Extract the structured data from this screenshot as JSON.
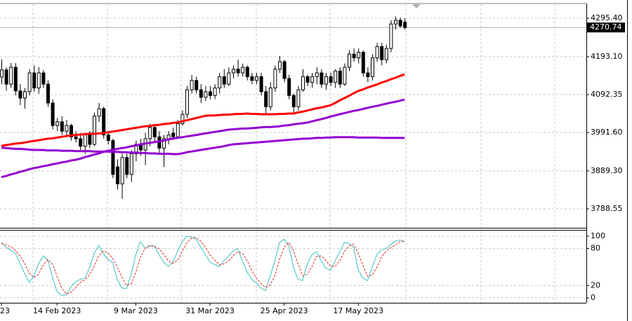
{
  "chart_data": [
    {
      "type": "candlestick",
      "categories": [
        "23",
        null,
        null,
        null,
        null,
        null,
        null,
        null,
        null,
        null,
        null,
        null,
        "14 Feb 2023",
        null,
        null,
        null,
        null,
        null,
        null,
        null,
        null,
        null,
        null,
        null,
        null,
        null,
        null,
        null,
        null,
        "9 Mar 2023",
        null,
        null,
        null,
        null,
        null,
        null,
        null,
        null,
        null,
        null,
        null,
        null,
        null,
        null,
        null,
        "31 Mar 2023",
        null,
        null,
        null,
        null,
        null,
        null,
        null,
        null,
        null,
        null,
        null,
        null,
        null,
        null,
        null,
        "25 Apr 2023",
        null,
        null,
        null,
        null,
        null,
        null,
        null,
        null,
        null,
        null,
        null,
        null,
        null,
        null,
        null,
        "17 May 2023",
        null,
        null,
        null,
        null,
        null,
        null,
        null,
        null,
        null,
        null
      ],
      "open": [
        4139,
        4158,
        4120,
        4165,
        4102,
        4083,
        4100,
        4150,
        4110,
        4150,
        4120,
        4070,
        4010,
        4020,
        3995,
        4010,
        3980,
        3975,
        3955,
        3985,
        3960,
        4035,
        4055,
        3985,
        3970,
        3900,
        3855,
        3925,
        3880,
        3935,
        3960,
        3945,
        3975,
        4005,
        3980,
        3950,
        3975,
        3990,
        3980,
        4015,
        4040,
        4105,
        4130,
        4105,
        4085,
        4100,
        4090,
        4110,
        4140,
        4120,
        4150,
        4160,
        4150,
        4165,
        4140,
        4130,
        4140,
        4100,
        4060,
        4110,
        4160,
        4180,
        4135,
        4090,
        4060,
        4105,
        4140,
        4125,
        4140,
        4150,
        4120,
        4140,
        4125,
        4155,
        4120,
        4165,
        4200,
        4190,
        4205,
        4150,
        4140,
        4190,
        4220,
        4185,
        4215,
        4280,
        4290,
        4285
      ],
      "high": [
        4186,
        4165,
        4176,
        4176,
        4120,
        4110,
        4160,
        4170,
        4165,
        4158,
        4130,
        4080,
        4030,
        4035,
        4025,
        4015,
        3995,
        3990,
        3990,
        3995,
        4045,
        4070,
        4060,
        3995,
        3975,
        3920,
        3935,
        3935,
        3945,
        3970,
        3975,
        3990,
        4015,
        4010,
        3995,
        3985,
        3995,
        4005,
        4025,
        4050,
        4115,
        4145,
        4140,
        4120,
        4115,
        4115,
        4120,
        4150,
        4160,
        4165,
        4170,
        4185,
        4175,
        4170,
        4150,
        4150,
        4150,
        4115,
        4125,
        4170,
        4195,
        4185,
        4145,
        4095,
        4115,
        4160,
        4145,
        4150,
        4165,
        4160,
        4150,
        4150,
        4160,
        4165,
        4175,
        4210,
        4215,
        4215,
        4210,
        4165,
        4200,
        4230,
        4230,
        4225,
        4290,
        4300,
        4297,
        4295
      ],
      "low": [
        4120,
        4102,
        4110,
        4090,
        4064,
        4055,
        4090,
        4100,
        4095,
        4110,
        4060,
        4000,
        3995,
        3985,
        3980,
        3970,
        3965,
        3945,
        3935,
        3950,
        3955,
        4020,
        3975,
        3960,
        3870,
        3840,
        3815,
        3870,
        3860,
        3915,
        3930,
        3905,
        3955,
        3965,
        3935,
        3900,
        3960,
        3975,
        3975,
        4010,
        4030,
        4095,
        4095,
        4070,
        4075,
        4080,
        4080,
        4095,
        4110,
        4115,
        4135,
        4140,
        4140,
        4130,
        4120,
        4120,
        4090,
        4040,
        4050,
        4100,
        4150,
        4125,
        4080,
        4045,
        4050,
        4100,
        4115,
        4110,
        4120,
        4110,
        4105,
        4115,
        4110,
        4110,
        4115,
        4155,
        4180,
        4175,
        4140,
        4125,
        4130,
        4180,
        4170,
        4175,
        4205,
        4265,
        4270,
        4265
      ],
      "close": [
        4158,
        4120,
        4165,
        4102,
        4083,
        4100,
        4150,
        4110,
        4150,
        4120,
        4070,
        4010,
        4020,
        3995,
        4010,
        3980,
        3975,
        3955,
        3985,
        3960,
        4035,
        4055,
        3985,
        3970,
        3880,
        3855,
        3925,
        3880,
        3935,
        3960,
        3945,
        3975,
        4005,
        3980,
        3950,
        3975,
        3985,
        3980,
        4015,
        4040,
        4105,
        4130,
        4105,
        4085,
        4100,
        4090,
        4110,
        4140,
        4120,
        4150,
        4160,
        4150,
        4165,
        4140,
        4130,
        4140,
        4100,
        4060,
        4110,
        4160,
        4180,
        4135,
        4090,
        4060,
        4105,
        4140,
        4125,
        4140,
        4150,
        4120,
        4140,
        4125,
        4155,
        4120,
        4165,
        4200,
        4190,
        4205,
        4150,
        4140,
        4190,
        4220,
        4185,
        4215,
        4280,
        4290,
        4275,
        4270.74
      ],
      "up_color": "#ffffff",
      "down_color": "#000000",
      "edge_color": "#000000",
      "series": [
        {
          "color": "#ff0000",
          "values": [
            3956,
            3958,
            3960,
            3962,
            3963,
            3965,
            3967,
            3969,
            3971,
            3973,
            3975,
            3976,
            3978,
            3980,
            3982,
            3984,
            3985,
            3986,
            3987,
            3988,
            3988,
            3989,
            3990,
            3992,
            3994,
            3996,
            3998,
            4000,
            4002,
            4004,
            4006,
            4008,
            4009,
            4011,
            4012,
            4014,
            4015,
            4017,
            4018,
            4021,
            4024,
            4027,
            4030,
            4033,
            4036,
            4037,
            4037,
            4038,
            4039,
            4039,
            4040,
            4041,
            4041,
            4042,
            4041,
            4041,
            4040,
            4040,
            4040,
            4040,
            4041,
            4041,
            4042,
            4042,
            4045,
            4047,
            4050,
            4053,
            4056,
            4058,
            4061,
            4064,
            4070,
            4077,
            4083,
            4089,
            4096,
            4102,
            4106,
            4111,
            4115,
            4119,
            4124,
            4128,
            4133,
            4137,
            4142,
            4146
          ]
        },
        {
          "color": "#9400d3",
          "values": [
            3873,
            3876,
            3880,
            3883,
            3887,
            3890,
            3894,
            3897,
            3899,
            3902,
            3904,
            3907,
            3909,
            3912,
            3914,
            3917,
            3919,
            3922,
            3926,
            3929,
            3933,
            3936,
            3940,
            3943,
            3945,
            3948,
            3950,
            3952,
            3955,
            3957,
            3960,
            3962,
            3964,
            3966,
            3968,
            3970,
            3973,
            3975,
            3977,
            3979,
            3981,
            3983,
            3985,
            3987,
            3989,
            3991,
            3993,
            3995,
            3997,
            3999,
            4000,
            4001,
            4002,
            4002,
            4003,
            4004,
            4005,
            4006,
            4006,
            4007,
            4008,
            4010,
            4011,
            4013,
            4015,
            4016,
            4018,
            4021,
            4024,
            4027,
            4030,
            4034,
            4037,
            4040,
            4043,
            4046,
            4049,
            4051,
            4054,
            4057,
            4060,
            4062,
            4065,
            4068,
            4071,
            4073,
            4076,
            4079
          ]
        },
        {
          "color": "#9400d3",
          "values": [
            3951,
            3950,
            3949,
            3948,
            3948,
            3947,
            3946,
            3945,
            3945,
            3945,
            3944,
            3944,
            3944,
            3943,
            3943,
            3943,
            3942,
            3942,
            3942,
            3942,
            3941,
            3941,
            3941,
            3941,
            3940,
            3940,
            3939,
            3939,
            3938,
            3938,
            3937,
            3937,
            3936,
            3936,
            3935,
            3935,
            3935,
            3934,
            3934,
            3936,
            3939,
            3941,
            3943,
            3945,
            3947,
            3949,
            3951,
            3953,
            3955,
            3958,
            3960,
            3961,
            3962,
            3963,
            3964,
            3965,
            3966,
            3967,
            3968,
            3969,
            3970,
            3971,
            3972,
            3973,
            3974,
            3975,
            3975,
            3976,
            3977,
            3977,
            3978,
            3978,
            3979,
            3979,
            3979,
            3979,
            3979,
            3978,
            3978,
            3978,
            3978,
            3978,
            3977,
            3977,
            3977,
            3977,
            3977,
            3977
          ]
        }
      ],
      "price_label": 4270.74,
      "ylim": [
        3738.2,
        4334.5
      ],
      "yticks": [
        {
          "value": 4295.4,
          "label": "4295.40"
        },
        {
          "value": 4193.1,
          "label": "4193.10"
        },
        4092.35,
        {
          "value": 3991.6,
          "label": "3991.60"
        },
        {
          "value": 3889.3,
          "label": "3889.30"
        },
        3788.55
      ],
      "grid": true
    },
    {
      "type": "line",
      "series": [
        {
          "color": "#3cc0c0",
          "values": [
            90,
            82,
            77,
            72,
            56,
            40,
            25,
            35,
            55,
            68,
            62,
            34,
            10,
            4,
            5,
            18,
            26,
            30,
            32,
            48,
            72,
            85,
            72,
            62,
            57,
            30,
            16,
            15,
            38,
            70,
            91,
            80,
            84,
            85,
            70,
            58,
            51,
            58,
            75,
            91,
            100,
            99,
            95,
            82,
            70,
            58,
            54,
            51,
            60,
            68,
            76,
            80,
            60,
            42,
            30,
            24,
            16,
            12,
            35,
            60,
            90,
            95,
            85,
            50,
            30,
            28,
            55,
            70,
            75,
            60,
            48,
            45,
            60,
            75,
            90,
            88,
            82,
            45,
            32,
            28,
            50,
            70,
            78,
            80,
            86,
            92,
            94,
            91
          ]
        },
        {
          "color": "#e02020",
          "dash": true,
          "values": [
            88,
            86,
            83,
            77,
            68,
            56,
            40,
            33,
            38,
            53,
            62,
            55,
            35,
            16,
            6,
            9,
            16,
            25,
            29,
            37,
            51,
            68,
            76,
            73,
            64,
            50,
            34,
            20,
            23,
            41,
            66,
            80,
            85,
            83,
            80,
            71,
            60,
            56,
            61,
            75,
            89,
            97,
            98,
            92,
            82,
            70,
            61,
            54,
            55,
            60,
            68,
            75,
            72,
            61,
            44,
            32,
            23,
            17,
            21,
            36,
            62,
            82,
            90,
            77,
            55,
            36,
            38,
            51,
            67,
            68,
            61,
            51,
            51,
            60,
            75,
            84,
            87,
            72,
            53,
            35,
            37,
            49,
            66,
            76,
            81,
            86,
            91,
            92
          ]
        }
      ],
      "ylim": [
        -8,
        110.2
      ],
      "yticks": [
        100,
        80,
        20,
        0
      ],
      "grid": true
    }
  ]
}
